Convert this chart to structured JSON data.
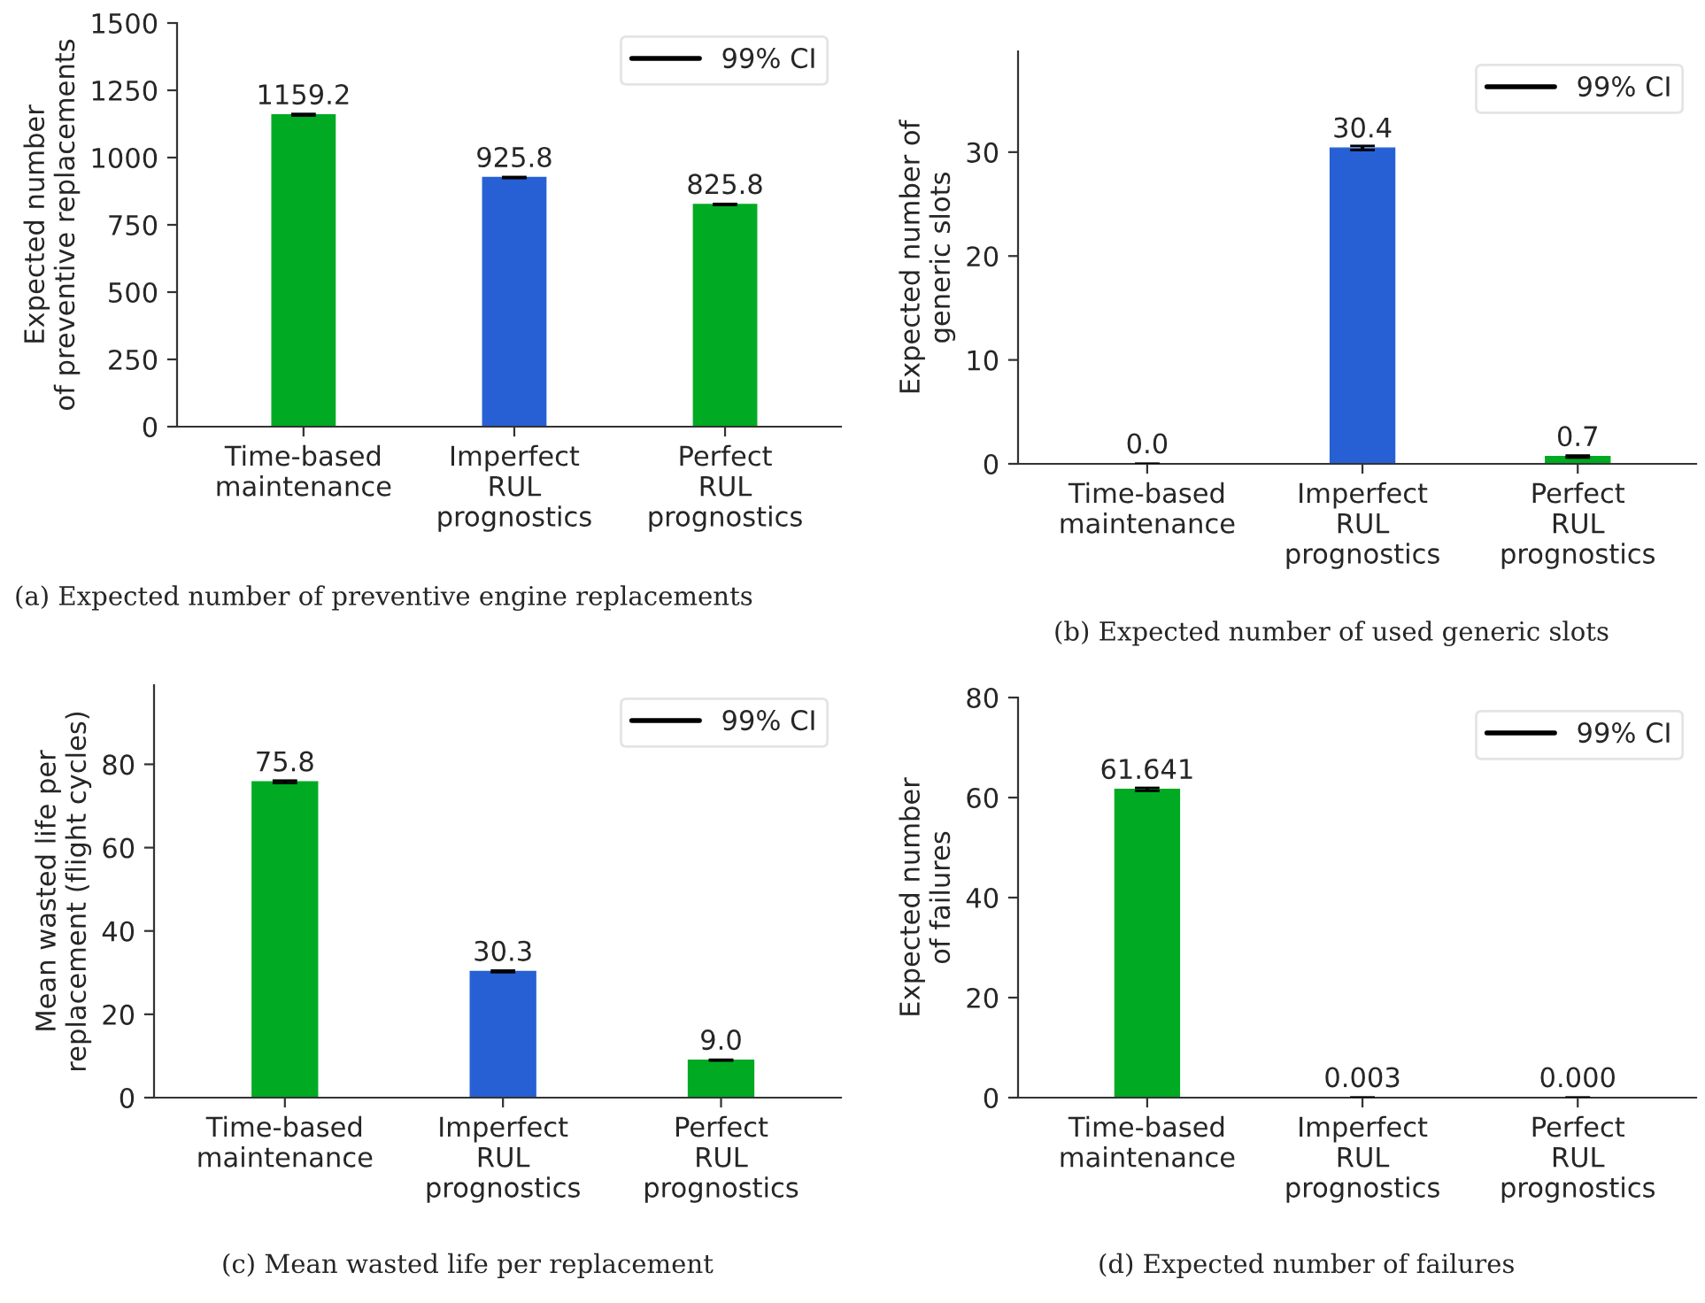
{
  "chart_data": [
    {
      "type": "bar",
      "title": "(a) Expected number of preventive engine replacements",
      "ylabel": "Expected number\nof preventive replacements",
      "categories": [
        "Time-based\nmaintenance",
        "Imperfect\nRUL\nprognostics",
        "Perfect\nRUL\nprognostics"
      ],
      "series": [
        {
          "name": "99% CI",
          "colors": [
            "#00aa22",
            "#2660d4",
            "#00aa22"
          ],
          "values": [
            1159.2,
            925.8,
            825.8
          ],
          "errors": [
            3,
            2,
            2
          ],
          "value_labels": [
            "1159.2",
            "925.8",
            "825.8"
          ]
        }
      ],
      "ylim": [
        0,
        1500
      ],
      "yticks": [
        0,
        250,
        500,
        750,
        1000,
        1250,
        1500
      ],
      "legend": "top right",
      "grid": false
    },
    {
      "type": "bar",
      "title": "(b) Expected number of used generic slots",
      "ylabel": "Expected number of\ngeneric slots",
      "categories": [
        "Time-based\nmaintenance",
        "Imperfect\nRUL\nprognostics",
        "Perfect\nRUL\nprognostics"
      ],
      "series": [
        {
          "name": "99% CI",
          "colors": [
            "#00aa22",
            "#2660d4",
            "#00aa22"
          ],
          "values": [
            0.0,
            30.4,
            0.7
          ],
          "errors": [
            0,
            0.2,
            0.1
          ],
          "value_labels": [
            "0.0",
            "30.4",
            "0.7"
          ]
        }
      ],
      "ylim": [
        0,
        39.7
      ],
      "yticks": [
        0,
        10,
        20,
        30
      ],
      "legend": "top right",
      "grid": false
    },
    {
      "type": "bar",
      "title": "(c) Mean wasted life per replacement",
      "ylabel": "Mean wasted life per\nreplacement (flight cycles)",
      "categories": [
        "Time-based\nmaintenance",
        "Imperfect\nRUL\nprognostics",
        "Perfect\nRUL\nprognostics"
      ],
      "series": [
        {
          "name": "99% CI",
          "colors": [
            "#00aa22",
            "#2660d4",
            "#00aa22"
          ],
          "values": [
            75.8,
            30.3,
            9.0
          ],
          "errors": [
            0.3,
            0.2,
            0.1
          ],
          "value_labels": [
            "75.8",
            "30.3",
            "9.0"
          ]
        }
      ],
      "ylim": [
        0,
        99
      ],
      "yticks": [
        0,
        20,
        40,
        60,
        80
      ],
      "legend": "top right",
      "grid": false
    },
    {
      "type": "bar",
      "title": "(d) Expected number of failures",
      "ylabel": "Expected number\nof failures",
      "categories": [
        "Time-based\nmaintenance",
        "Imperfect\nRUL\nprognostics",
        "Perfect\nRUL\nprognostics"
      ],
      "series": [
        {
          "name": "99% CI",
          "colors": [
            "#00aa22",
            "#2660d4",
            "#00aa22"
          ],
          "values": [
            61.641,
            0.003,
            0.0
          ],
          "errors": [
            0.3,
            0.01,
            0
          ],
          "value_labels": [
            "61.641",
            "0.003",
            "0.000"
          ]
        }
      ],
      "ylim": [
        0,
        80
      ],
      "yticks": [
        0,
        20,
        40,
        60,
        80
      ],
      "legend": "top right",
      "grid": false
    }
  ]
}
